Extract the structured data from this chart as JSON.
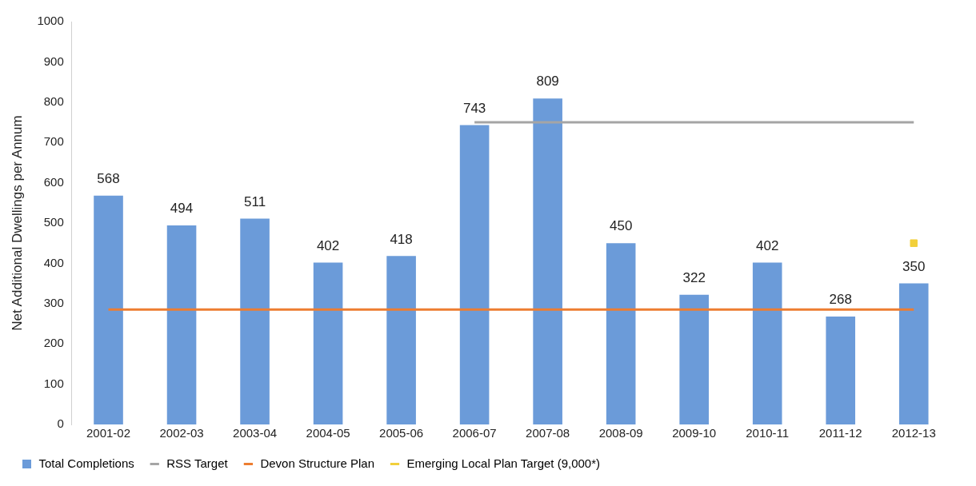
{
  "chart_data": {
    "type": "bar",
    "ylabel": "Net Additional Dwellings per Annum",
    "categories": [
      "2001-02",
      "2002-03",
      "2003-04",
      "2004-05",
      "2005-06",
      "2006-07",
      "2007-08",
      "2008-09",
      "2009-10",
      "2010-11",
      "2011-12",
      "2012-13"
    ],
    "series": [
      {
        "name": "Total Completions",
        "color": "#6b9bd9",
        "values": [
          568,
          494,
          511,
          402,
          418,
          743,
          809,
          450,
          322,
          402,
          268,
          350
        ],
        "value_labels": [
          "568",
          "494",
          "511",
          "402",
          "418",
          "743",
          "809",
          "450",
          "322",
          "402",
          "268",
          "350"
        ]
      },
      {
        "name": "RSS Target",
        "type": "line",
        "color": "#a5a5a5",
        "values": [
          null,
          null,
          null,
          null,
          null,
          750,
          750,
          750,
          750,
          750,
          750,
          750
        ]
      },
      {
        "name": "Devon Structure Plan",
        "type": "line",
        "color": "#ed7d31",
        "values": [
          285,
          285,
          285,
          285,
          285,
          285,
          285,
          285,
          285,
          285,
          285,
          285
        ]
      },
      {
        "name": "Emerging Local Plan Target (9,000*)",
        "type": "line",
        "color": "#f2d03b",
        "marker": "square",
        "values": [
          null,
          null,
          null,
          null,
          null,
          null,
          null,
          null,
          null,
          null,
          null,
          450
        ]
      }
    ],
    "ylim": [
      0,
      1000
    ],
    "yticks": [
      0,
      100,
      200,
      300,
      400,
      500,
      600,
      700,
      800,
      900,
      1000
    ],
    "grid": false,
    "legend": "bottom"
  }
}
